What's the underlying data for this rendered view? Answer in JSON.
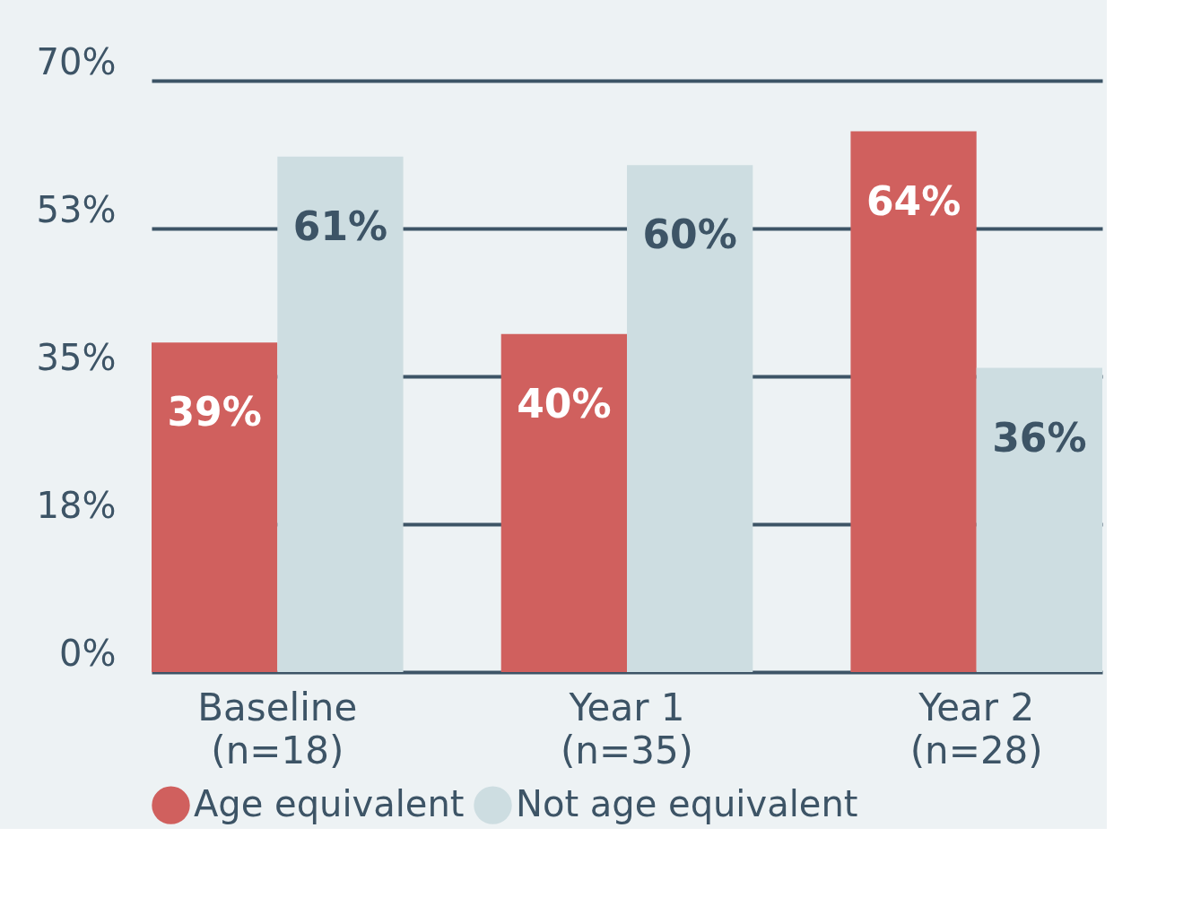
{
  "chart_data": {
    "type": "bar",
    "categories": [
      "Baseline\n(n=18)",
      "Year 1\n(n=35)",
      "Year 2\n(n=28)"
    ],
    "series": [
      {
        "name": "Age equivalent",
        "color": "#d0605e",
        "values": [
          39,
          40,
          64
        ],
        "value_labels": [
          "39%",
          "40%",
          "64%"
        ]
      },
      {
        "name": "Not age equivalent",
        "color": "#cddde1",
        "values": [
          61,
          60,
          36
        ],
        "value_labels": [
          "61%",
          "60%",
          "36%"
        ]
      }
    ],
    "ylim": [
      0,
      70
    ],
    "yticks": [
      {
        "value": 0,
        "label": "0%"
      },
      {
        "value": 17.5,
        "label": "18%"
      },
      {
        "value": 35,
        "label": "35%"
      },
      {
        "value": 52.5,
        "label": "53%"
      },
      {
        "value": 70,
        "label": "70%"
      }
    ],
    "grid": "y",
    "legend": "bottom"
  }
}
